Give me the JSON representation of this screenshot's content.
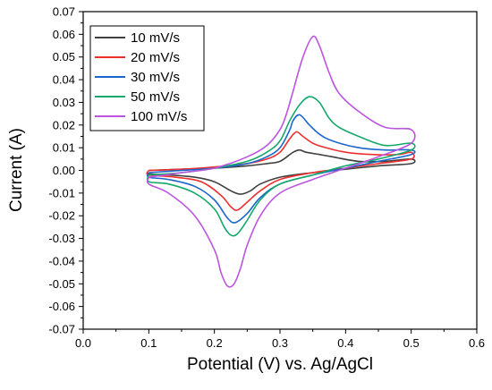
{
  "chart_data": {
    "type": "line",
    "xlabel": "Potential (V) vs. Ag/AgCl",
    "ylabel": "Current (A)",
    "xlim": [
      0.0,
      0.6
    ],
    "ylim": [
      -0.07,
      0.07
    ],
    "xticks": [
      "0.0",
      "0.1",
      "0.2",
      "0.3",
      "0.4",
      "0.5",
      "0.6"
    ],
    "yticks": [
      "-0.07",
      "-0.06",
      "-0.05",
      "-0.04",
      "-0.03",
      "-0.02",
      "-0.01",
      "0.00",
      "0.01",
      "0.02",
      "0.03",
      "0.04",
      "0.05",
      "0.06",
      "0.07"
    ],
    "grid": false,
    "legend_position": "top-left",
    "series": [
      {
        "name": "10 mV/s",
        "color": "#404040",
        "x": [
          0.1,
          0.15,
          0.2,
          0.25,
          0.28,
          0.3,
          0.32,
          0.33,
          0.34,
          0.36,
          0.38,
          0.42,
          0.46,
          0.5,
          0.5,
          0.45,
          0.4,
          0.35,
          0.3,
          0.27,
          0.255,
          0.24,
          0.225,
          0.2,
          0.17,
          0.13,
          0.1
        ],
        "y": [
          0.0,
          0.0005,
          0.001,
          0.002,
          0.003,
          0.004,
          0.008,
          0.009,
          0.008,
          0.007,
          0.006,
          0.004,
          0.004,
          0.005,
          0.003,
          0.002,
          0.0005,
          -0.001,
          -0.003,
          -0.006,
          -0.009,
          -0.0105,
          -0.009,
          -0.005,
          -0.003,
          -0.002,
          -0.0015
        ]
      },
      {
        "name": "20 mV/s",
        "color": "#ee3030",
        "x": [
          0.1,
          0.15,
          0.2,
          0.25,
          0.28,
          0.3,
          0.315,
          0.325,
          0.335,
          0.35,
          0.37,
          0.4,
          0.44,
          0.48,
          0.5,
          0.5,
          0.45,
          0.4,
          0.35,
          0.3,
          0.27,
          0.25,
          0.235,
          0.225,
          0.21,
          0.18,
          0.14,
          0.1
        ],
        "y": [
          0.0,
          0.0005,
          0.0015,
          0.003,
          0.005,
          0.008,
          0.014,
          0.017,
          0.015,
          0.012,
          0.01,
          0.008,
          0.007,
          0.007,
          0.008,
          0.005,
          0.003,
          0.001,
          -0.001,
          -0.004,
          -0.009,
          -0.014,
          -0.0175,
          -0.016,
          -0.011,
          -0.005,
          -0.003,
          -0.002
        ]
      },
      {
        "name": "30 mV/s",
        "color": "#1a66cc",
        "x": [
          0.1,
          0.15,
          0.2,
          0.25,
          0.28,
          0.3,
          0.315,
          0.32,
          0.33,
          0.345,
          0.36,
          0.38,
          0.42,
          0.46,
          0.5,
          0.5,
          0.45,
          0.4,
          0.35,
          0.3,
          0.27,
          0.25,
          0.232,
          0.22,
          0.2,
          0.17,
          0.13,
          0.1
        ],
        "y": [
          -0.001,
          0.0,
          0.001,
          0.003,
          0.006,
          0.01,
          0.018,
          0.022,
          0.0245,
          0.02,
          0.016,
          0.013,
          0.01,
          0.009,
          0.009,
          0.007,
          0.004,
          0.001,
          -0.002,
          -0.006,
          -0.012,
          -0.019,
          -0.023,
          -0.021,
          -0.013,
          -0.007,
          -0.004,
          -0.003
        ]
      },
      {
        "name": "50 mV/s",
        "color": "#14a86a",
        "x": [
          0.1,
          0.15,
          0.2,
          0.25,
          0.28,
          0.3,
          0.315,
          0.33,
          0.345,
          0.36,
          0.375,
          0.39,
          0.42,
          0.46,
          0.5,
          0.5,
          0.45,
          0.4,
          0.35,
          0.3,
          0.27,
          0.25,
          0.235,
          0.225,
          0.215,
          0.2,
          0.17,
          0.13,
          0.1
        ],
        "y": [
          -0.002,
          -0.001,
          0.001,
          0.004,
          0.008,
          0.013,
          0.022,
          0.029,
          0.0325,
          0.03,
          0.023,
          0.019,
          0.015,
          0.011,
          0.012,
          0.009,
          0.005,
          0.002,
          -0.002,
          -0.006,
          -0.013,
          -0.022,
          -0.028,
          -0.0285,
          -0.025,
          -0.017,
          -0.01,
          -0.006,
          -0.005
        ]
      },
      {
        "name": "100 mV/s",
        "color": "#bb55e0",
        "x": [
          0.1,
          0.15,
          0.2,
          0.25,
          0.28,
          0.3,
          0.31,
          0.32,
          0.335,
          0.35,
          0.36,
          0.375,
          0.39,
          0.42,
          0.46,
          0.5,
          0.5,
          0.45,
          0.4,
          0.35,
          0.3,
          0.27,
          0.25,
          0.24,
          0.23,
          0.22,
          0.21,
          0.2,
          0.17,
          0.13,
          0.1
        ],
        "y": [
          -0.003,
          -0.001,
          0.001,
          0.006,
          0.011,
          0.018,
          0.025,
          0.035,
          0.05,
          0.059,
          0.055,
          0.043,
          0.034,
          0.026,
          0.019,
          0.018,
          0.012,
          0.006,
          0.001,
          -0.004,
          -0.01,
          -0.02,
          -0.033,
          -0.043,
          -0.05,
          -0.051,
          -0.045,
          -0.035,
          -0.02,
          -0.01,
          -0.006
        ]
      }
    ]
  }
}
